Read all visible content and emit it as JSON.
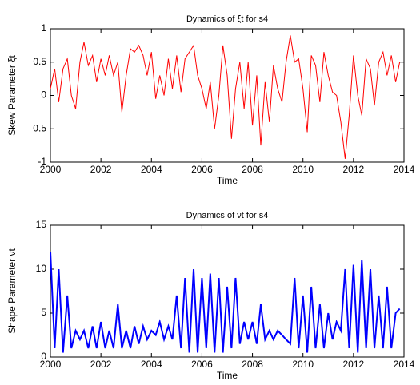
{
  "chart_data": [
    {
      "type": "line",
      "title": "Dynamics of ξt for s4",
      "xlabel": "Time",
      "ylabel": "Skew Parameter ξt",
      "x": [
        2000,
        2000.17,
        2000.33,
        2000.5,
        2000.67,
        2000.83,
        2001,
        2001.17,
        2001.33,
        2001.5,
        2001.67,
        2001.83,
        2002,
        2002.17,
        2002.33,
        2002.5,
        2002.67,
        2002.83,
        2003,
        2003.17,
        2003.33,
        2003.5,
        2003.67,
        2003.83,
        2004,
        2004.17,
        2004.33,
        2004.5,
        2004.67,
        2004.83,
        2005,
        2005.17,
        2005.33,
        2005.5,
        2005.67,
        2005.83,
        2006,
        2006.17,
        2006.33,
        2006.5,
        2006.67,
        2006.83,
        2007,
        2007.17,
        2007.33,
        2007.5,
        2007.67,
        2007.83,
        2008,
        2008.17,
        2008.33,
        2008.5,
        2008.67,
        2008.83,
        2009,
        2009.17,
        2009.33,
        2009.5,
        2009.67,
        2009.83,
        2010,
        2010.17,
        2010.33,
        2010.5,
        2010.67,
        2010.83,
        2011,
        2011.17,
        2011.33,
        2011.5,
        2011.67,
        2011.83,
        2012,
        2012.17,
        2012.33,
        2012.5,
        2012.67,
        2012.83,
        2013,
        2013.17,
        2013.33,
        2013.5,
        2013.67,
        2013.83
      ],
      "series": [
        {
          "color": "#ff0000",
          "values": [
            0.1,
            0.4,
            -0.1,
            0.4,
            0.55,
            0.0,
            -0.2,
            0.5,
            0.8,
            0.45,
            0.6,
            0.2,
            0.55,
            0.3,
            0.6,
            0.3,
            0.5,
            -0.25,
            0.3,
            0.7,
            0.65,
            0.75,
            0.6,
            0.3,
            0.65,
            -0.05,
            0.3,
            0.0,
            0.55,
            0.1,
            0.6,
            0.05,
            0.55,
            0.65,
            0.75,
            0.3,
            0.1,
            -0.2,
            0.2,
            -0.5,
            0.0,
            0.75,
            0.3,
            -0.65,
            0.1,
            0.5,
            -0.2,
            0.5,
            -0.45,
            0.3,
            -0.75,
            0.2,
            -0.4,
            0.45,
            0.1,
            -0.1,
            0.5,
            0.9,
            0.5,
            0.55,
            0.1,
            -0.55,
            0.6,
            0.45,
            -0.1,
            0.65,
            0.3,
            0.05,
            0.0,
            -0.4,
            -0.95,
            -0.3,
            0.6,
            0.0,
            -0.3,
            0.55,
            0.4,
            -0.15,
            0.5,
            0.65,
            0.3,
            0.6,
            0.2,
            0.5
          ]
        }
      ],
      "xlim": [
        2000,
        2014
      ],
      "xticks": [
        2000,
        2002,
        2004,
        2006,
        2008,
        2010,
        2012,
        2014
      ],
      "ylim": [
        -1,
        1
      ],
      "yticks": [
        -1,
        -0.5,
        0,
        0.5,
        1
      ]
    },
    {
      "type": "line",
      "title": "Dynamics of νt for s4",
      "xlabel": "Time",
      "ylabel": "Shape Parameter νt",
      "x": [
        2000,
        2000.17,
        2000.33,
        2000.5,
        2000.67,
        2000.83,
        2001,
        2001.17,
        2001.33,
        2001.5,
        2001.67,
        2001.83,
        2002,
        2002.17,
        2002.33,
        2002.5,
        2002.67,
        2002.83,
        2003,
        2003.17,
        2003.33,
        2003.5,
        2003.67,
        2003.83,
        2004,
        2004.17,
        2004.33,
        2004.5,
        2004.67,
        2004.83,
        2005,
        2005.17,
        2005.33,
        2005.5,
        2005.67,
        2005.83,
        2006,
        2006.17,
        2006.33,
        2006.5,
        2006.67,
        2006.83,
        2007,
        2007.17,
        2007.33,
        2007.5,
        2007.67,
        2007.83,
        2008,
        2008.17,
        2008.33,
        2008.5,
        2008.67,
        2008.83,
        2009,
        2009.17,
        2009.33,
        2009.5,
        2009.67,
        2009.83,
        2010,
        2010.17,
        2010.33,
        2010.5,
        2010.67,
        2010.83,
        2011,
        2011.17,
        2011.33,
        2011.5,
        2011.67,
        2011.83,
        2012,
        2012.17,
        2012.33,
        2012.5,
        2012.67,
        2012.83,
        2013,
        2013.17,
        2013.33,
        2013.5,
        2013.67,
        2013.83
      ],
      "series": [
        {
          "color": "#0000ff",
          "values": [
            12,
            1,
            10,
            0.5,
            7,
            1,
            3,
            2,
            3,
            1,
            3.5,
            1,
            4,
            1,
            3,
            1,
            6,
            1,
            3,
            1,
            3.5,
            1.5,
            3.5,
            2,
            3,
            2.5,
            4,
            2,
            3.5,
            2,
            7,
            1,
            9,
            0.5,
            10,
            0.5,
            9,
            1,
            9.5,
            0.5,
            9,
            0.5,
            8,
            1,
            9,
            1.5,
            4,
            2,
            4,
            1.5,
            6,
            2,
            3,
            2,
            3,
            2.5,
            2,
            1.5,
            9,
            1,
            7,
            0.5,
            8,
            1,
            6,
            1,
            5,
            2,
            4,
            3,
            10,
            1,
            10.5,
            0.5,
            11,
            1,
            10,
            1,
            7,
            1,
            8,
            1,
            5,
            5.5
          ]
        }
      ],
      "xlim": [
        2000,
        2014
      ],
      "xticks": [
        2000,
        2002,
        2004,
        2006,
        2008,
        2010,
        2012,
        2014
      ],
      "ylim": [
        0,
        15
      ],
      "yticks": [
        0,
        5,
        10,
        15
      ]
    }
  ]
}
